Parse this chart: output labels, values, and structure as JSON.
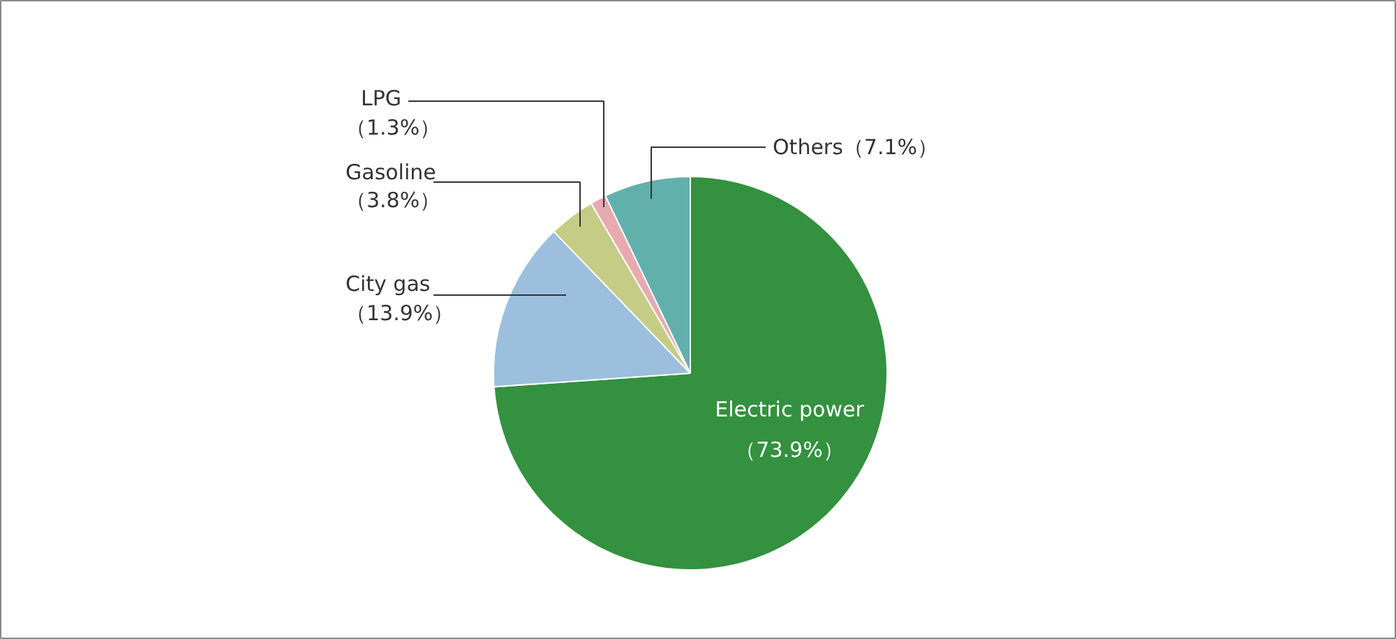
{
  "chart_data": {
    "type": "pie",
    "categories": [
      "Electric power",
      "City gas",
      "Gasoline",
      "LPG",
      "Others"
    ],
    "values": [
      73.9,
      13.9,
      3.8,
      1.3,
      7.1
    ],
    "colors": [
      "#33913f",
      "#9bbfdd",
      "#c5cc85",
      "#e8a9b0",
      "#62b0ac"
    ],
    "value_labels": [
      "（73.9%）",
      "（13.9%）",
      "（3.8%）",
      "（1.3%）",
      "（7.1%）"
    ]
  }
}
